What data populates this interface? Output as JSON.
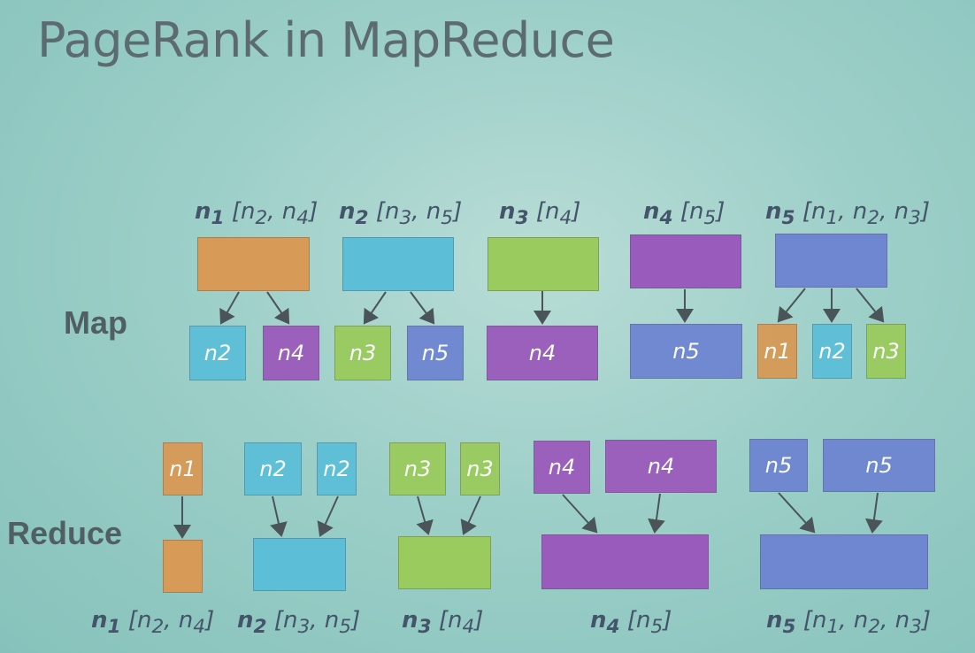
{
  "title": "PageRank in MapReduce",
  "rows": {
    "map": "Map",
    "reduce": "Reduce"
  },
  "labels": {
    "top": [
      "n1 [n2, n4]",
      "n2 [n3, n5]",
      "n3 [n4]",
      "n4 [n5]",
      "n5 [n1, n2, n3]"
    ],
    "bottom": [
      "n1 [n2, n4]",
      "n2 [n3, n5]",
      "n3 [n4]",
      "n4 [n5]",
      "n5 [n1, n2, n3]"
    ]
  },
  "map_outputs": [
    "n2",
    "n4",
    "n3",
    "n5",
    "n4",
    "n5",
    "n1",
    "n2",
    "n3"
  ],
  "reduce_inputs": [
    "n1",
    "n2",
    "n2",
    "n3",
    "n3",
    "n4",
    "n4",
    "n5",
    "n5"
  ],
  "colors": {
    "n1": "#d79a57",
    "n2": "#5cbfd7",
    "n3": "#9acb5e",
    "n4": "#9a5cbc",
    "n5": "#6f86d1"
  }
}
